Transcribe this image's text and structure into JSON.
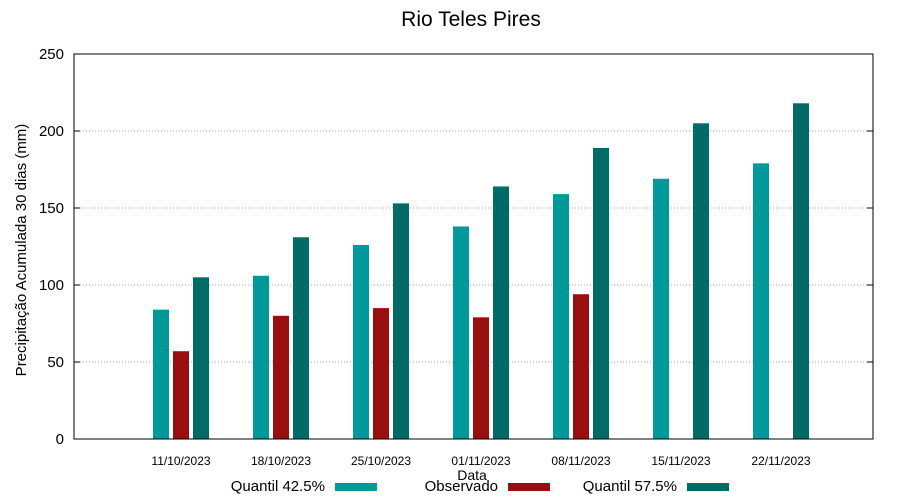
{
  "chart_data": {
    "type": "bar",
    "title": "Rio Teles Pires",
    "xlabel": "Data",
    "ylabel": "Precipitação Acumulada 30 dias (mm)",
    "ylim": [
      0,
      250
    ],
    "yticks": [
      0,
      50,
      100,
      150,
      200,
      250
    ],
    "grid": "horizontal dotted",
    "legend_position": "bottom",
    "categories": [
      "11/10/2023",
      "18/10/2023",
      "25/10/2023",
      "01/11/2023",
      "08/11/2023",
      "15/11/2023",
      "22/11/2023"
    ],
    "series": [
      {
        "name": "Quantil 42.5%",
        "color": "#009999",
        "values": [
          84,
          106,
          126,
          138,
          159,
          169,
          179
        ]
      },
      {
        "name": "Observado",
        "color": "#990f0f",
        "values": [
          57,
          80,
          85,
          79,
          94,
          null,
          null
        ]
      },
      {
        "name": "Quantil 57.5%",
        "color": "#006a66",
        "values": [
          105,
          131,
          153,
          164,
          189,
          205,
          218
        ]
      }
    ]
  }
}
